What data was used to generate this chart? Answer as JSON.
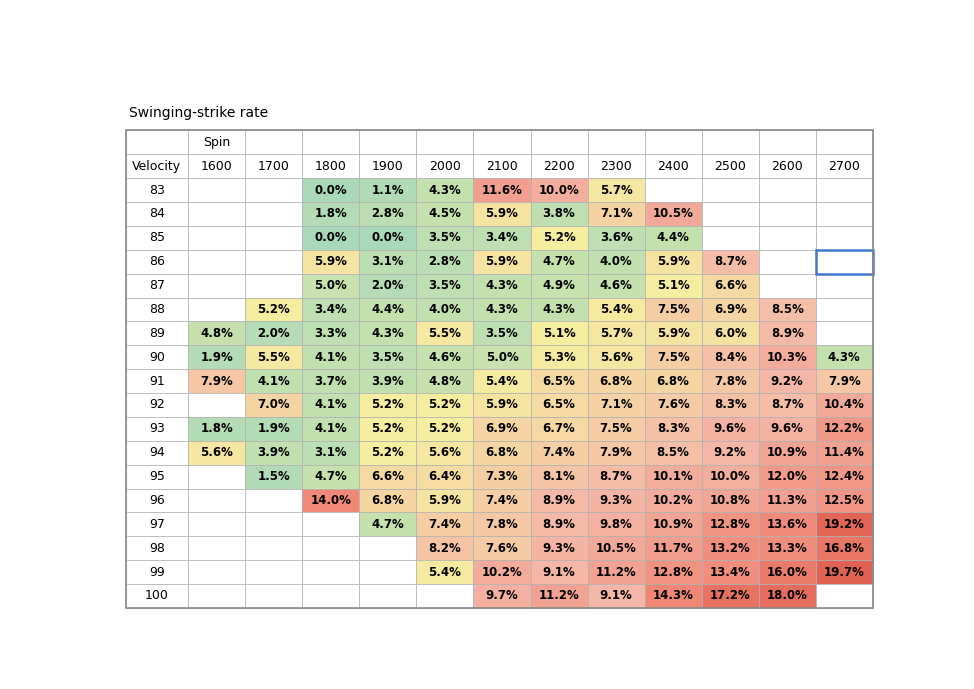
{
  "title": "Swinging-strike rate",
  "rows": [
    {
      "vel": 83,
      "vals": [
        null,
        null,
        0.0,
        1.1,
        4.3,
        11.6,
        10.0,
        5.7,
        null,
        null,
        null,
        null
      ]
    },
    {
      "vel": 84,
      "vals": [
        null,
        null,
        1.8,
        2.8,
        4.5,
        5.9,
        3.8,
        7.1,
        10.5,
        null,
        null,
        null
      ]
    },
    {
      "vel": 85,
      "vals": [
        null,
        null,
        0.0,
        0.0,
        3.5,
        3.4,
        5.2,
        3.6,
        4.4,
        null,
        null,
        null
      ]
    },
    {
      "vel": 86,
      "vals": [
        null,
        null,
        5.9,
        3.1,
        2.8,
        5.9,
        4.7,
        4.0,
        5.9,
        8.7,
        null,
        null
      ]
    },
    {
      "vel": 87,
      "vals": [
        null,
        null,
        5.0,
        2.0,
        3.5,
        4.3,
        4.9,
        4.6,
        5.1,
        6.6,
        null,
        null
      ]
    },
    {
      "vel": 88,
      "vals": [
        null,
        5.2,
        3.4,
        4.4,
        4.0,
        4.3,
        4.3,
        5.4,
        7.5,
        6.9,
        8.5,
        null
      ]
    },
    {
      "vel": 89,
      "vals": [
        4.8,
        2.0,
        3.3,
        4.3,
        5.5,
        3.5,
        5.1,
        5.7,
        5.9,
        6.0,
        8.9,
        null
      ]
    },
    {
      "vel": 90,
      "vals": [
        1.9,
        5.5,
        4.1,
        3.5,
        4.6,
        5.0,
        5.3,
        5.6,
        7.5,
        8.4,
        10.3,
        4.3
      ]
    },
    {
      "vel": 91,
      "vals": [
        7.9,
        4.1,
        3.7,
        3.9,
        4.8,
        5.4,
        6.5,
        6.8,
        6.8,
        7.8,
        9.2,
        7.9
      ]
    },
    {
      "vel": 92,
      "vals": [
        null,
        7.0,
        4.1,
        5.2,
        5.2,
        5.9,
        6.5,
        7.1,
        7.6,
        8.3,
        8.7,
        10.4
      ]
    },
    {
      "vel": 93,
      "vals": [
        1.8,
        1.9,
        4.1,
        5.2,
        5.2,
        6.9,
        6.7,
        7.5,
        8.3,
        9.6,
        9.6,
        12.2
      ]
    },
    {
      "vel": 94,
      "vals": [
        5.6,
        3.9,
        3.1,
        5.2,
        5.6,
        6.8,
        7.4,
        7.9,
        8.5,
        9.2,
        10.9,
        11.4
      ]
    },
    {
      "vel": 95,
      "vals": [
        null,
        1.5,
        4.7,
        6.6,
        6.4,
        7.3,
        8.1,
        8.7,
        10.1,
        10.0,
        12.0,
        12.4
      ]
    },
    {
      "vel": 96,
      "vals": [
        null,
        null,
        14.0,
        6.8,
        5.9,
        7.4,
        8.9,
        9.3,
        10.2,
        10.8,
        11.3,
        12.5
      ]
    },
    {
      "vel": 97,
      "vals": [
        null,
        null,
        null,
        4.7,
        7.4,
        7.8,
        8.9,
        9.8,
        10.9,
        12.8,
        13.6,
        19.2
      ]
    },
    {
      "vel": 98,
      "vals": [
        null,
        null,
        null,
        null,
        8.2,
        7.6,
        9.3,
        10.5,
        11.7,
        13.2,
        13.3,
        16.8
      ]
    },
    {
      "vel": 99,
      "vals": [
        null,
        null,
        null,
        null,
        5.4,
        10.2,
        9.1,
        11.2,
        12.8,
        13.4,
        16.0,
        19.7
      ]
    },
    {
      "vel": 100,
      "vals": [
        null,
        null,
        null,
        null,
        null,
        9.7,
        11.2,
        9.1,
        14.3,
        17.2,
        18.0,
        null
      ]
    }
  ],
  "spin_cols": [
    "1600",
    "1700",
    "1800",
    "1900",
    "2000",
    "2100",
    "2200",
    "2300",
    "2400",
    "2500",
    "2600",
    "2700"
  ],
  "blue_outline_cell": {
    "vel": 86,
    "spin_idx": 11
  }
}
